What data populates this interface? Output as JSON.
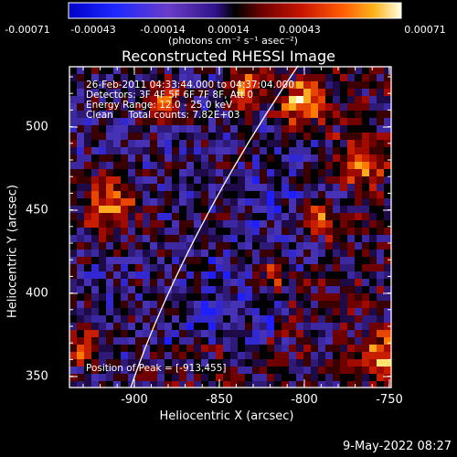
{
  "colorbar": {
    "tick_labels": [
      "-0.00071",
      "-0.00043",
      "-0.00014",
      "0.00014",
      "0.00043",
      "0.00071"
    ],
    "units": "(photons cm⁻² s⁻¹ asec⁻²)",
    "range": [
      -0.00071,
      0.00071
    ]
  },
  "title": "Reconstructed RHESSI Image",
  "annotations": [
    "26-Feb-2011 04:33:44.000 to 04:37:04.000",
    "Detectors: 3F 4F 5F 6F 7F 8F, Att 0",
    "Energy Range: 12.0 - 25.0 keV",
    "Clean     Total counts: 7.82E+03"
  ],
  "peak_text": "Position of Peak = [-913,455]",
  "xaxis": {
    "label": "Heliocentric X (arcsec)",
    "ticks": [
      "-900",
      "-850",
      "-800",
      "-750"
    ]
  },
  "yaxis": {
    "label": "Heliocentric Y (arcsec)",
    "ticks": [
      "500",
      "450",
      "400",
      "350"
    ]
  },
  "footer_date": "9-May-2022 08:27"
}
